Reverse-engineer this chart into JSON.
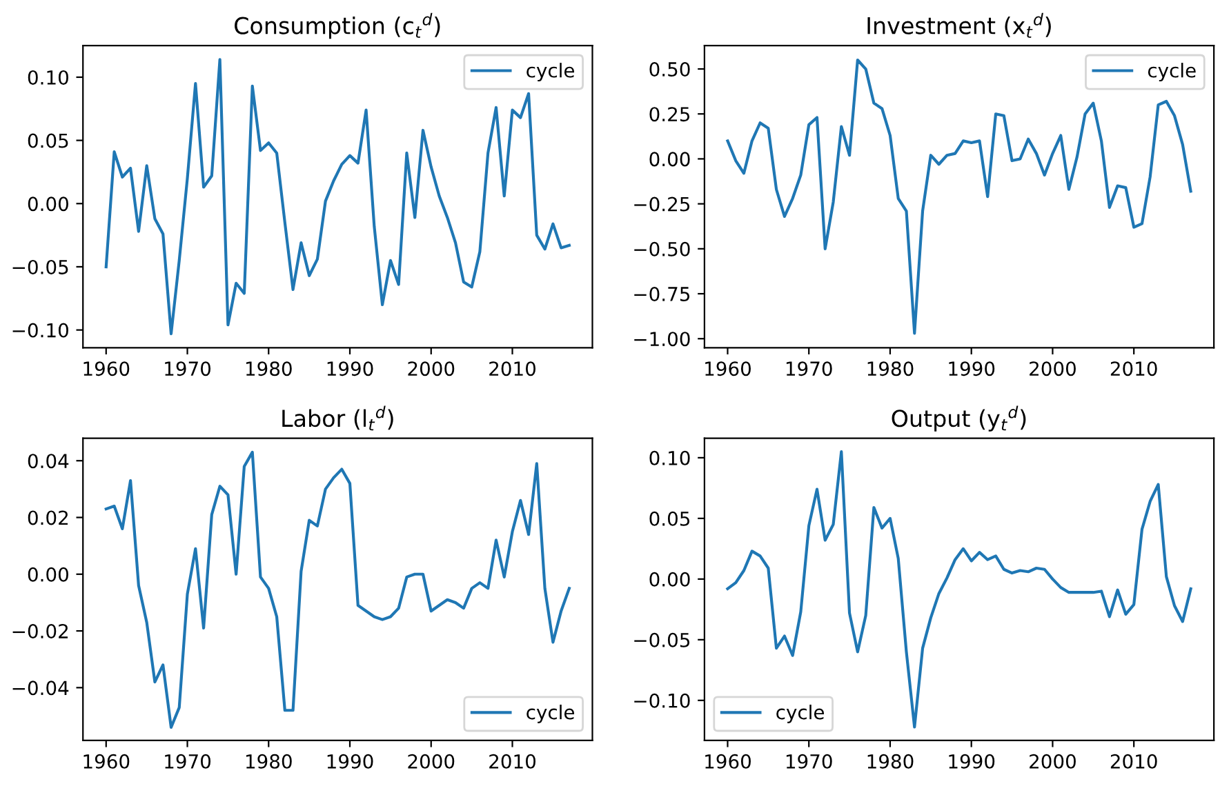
{
  "chart_data": [
    {
      "type": "line",
      "title": "Consumption (c$_{t}$$^{d}$)",
      "x": [
        1960,
        1961,
        1962,
        1963,
        1964,
        1965,
        1966,
        1967,
        1968,
        1969,
        1970,
        1971,
        1972,
        1973,
        1974,
        1975,
        1976,
        1977,
        1978,
        1979,
        1980,
        1981,
        1982,
        1983,
        1984,
        1985,
        1986,
        1987,
        1988,
        1989,
        1990,
        1991,
        1992,
        1993,
        1994,
        1995,
        1996,
        1997,
        1998,
        1999,
        2000,
        2001,
        2002,
        2003,
        2004,
        2005,
        2006,
        2007,
        2008,
        2009,
        2010,
        2011,
        2012,
        2013,
        2014,
        2015,
        2016,
        2017
      ],
      "series": [
        {
          "name": "cycle",
          "color": "#1f77b4",
          "values": [
            -0.05,
            0.041,
            0.021,
            0.028,
            -0.022,
            0.03,
            -0.012,
            -0.024,
            -0.103,
            -0.045,
            0.02,
            0.095,
            0.013,
            0.022,
            0.114,
            -0.096,
            -0.063,
            -0.071,
            0.093,
            0.042,
            0.048,
            0.04,
            -0.015,
            -0.068,
            -0.031,
            -0.057,
            -0.044,
            0.002,
            0.018,
            0.031,
            0.038,
            0.032,
            0.074,
            -0.018,
            -0.08,
            -0.045,
            -0.064,
            0.04,
            -0.011,
            0.058,
            0.029,
            0.006,
            -0.011,
            -0.031,
            -0.062,
            -0.066,
            -0.038,
            0.04,
            0.076,
            0.006,
            0.074,
            0.068,
            0.087,
            -0.025,
            -0.036,
            -0.016,
            -0.035,
            -0.033
          ]
        }
      ],
      "xlim": [
        1957.15,
        2019.85
      ],
      "xticks": [
        1960,
        1970,
        1980,
        1990,
        2000,
        2010
      ],
      "ylim": [
        -0.114,
        0.125
      ],
      "yticks": [
        {
          "value": -0.1,
          "label": "−0.10"
        },
        {
          "value": -0.05,
          "label": "−0.05"
        },
        {
          "value": 0,
          "label": "0.00"
        },
        {
          "value": 0.05,
          "label": "0.05"
        },
        {
          "value": 0.1,
          "label": "0.10"
        }
      ],
      "legend": "top right",
      "grid": false
    },
    {
      "type": "line",
      "title": "Investment (x$_{t}$$^{d}$)",
      "x": [
        1960,
        1961,
        1962,
        1963,
        1964,
        1965,
        1966,
        1967,
        1968,
        1969,
        1970,
        1971,
        1972,
        1973,
        1974,
        1975,
        1976,
        1977,
        1978,
        1979,
        1980,
        1981,
        1982,
        1983,
        1984,
        1985,
        1986,
        1987,
        1988,
        1989,
        1990,
        1991,
        1992,
        1993,
        1994,
        1995,
        1996,
        1997,
        1998,
        1999,
        2000,
        2001,
        2002,
        2003,
        2004,
        2005,
        2006,
        2007,
        2008,
        2009,
        2010,
        2011,
        2012,
        2013,
        2014,
        2015,
        2016,
        2017
      ],
      "series": [
        {
          "name": "cycle",
          "color": "#1f77b4",
          "values": [
            0.1,
            -0.01,
            -0.08,
            0.1,
            0.2,
            0.17,
            -0.17,
            -0.32,
            -0.22,
            -0.09,
            0.19,
            0.23,
            -0.5,
            -0.24,
            0.18,
            0.02,
            0.55,
            0.5,
            0.31,
            0.28,
            0.13,
            -0.22,
            -0.29,
            -0.97,
            -0.29,
            0.02,
            -0.03,
            0.02,
            0.03,
            0.1,
            0.09,
            0.1,
            -0.21,
            0.25,
            0.24,
            -0.01,
            0.0,
            0.11,
            0.03,
            -0.09,
            0.03,
            0.13,
            -0.17,
            0.01,
            0.25,
            0.31,
            0.1,
            -0.27,
            -0.15,
            -0.16,
            -0.38,
            -0.36,
            -0.1,
            0.3,
            0.32,
            0.24,
            0.08,
            -0.18
          ]
        }
      ],
      "xlim": [
        1957.15,
        2019.85
      ],
      "xticks": [
        1960,
        1970,
        1980,
        1990,
        2000,
        2010
      ],
      "ylim": [
        -1.05,
        0.63
      ],
      "yticks": [
        {
          "value": -1,
          "label": "−1.00"
        },
        {
          "value": -0.75,
          "label": "−0.75"
        },
        {
          "value": -0.5,
          "label": "−0.50"
        },
        {
          "value": -0.25,
          "label": "−0.25"
        },
        {
          "value": 0,
          "label": "0.00"
        },
        {
          "value": 0.25,
          "label": "0.25"
        },
        {
          "value": 0.5,
          "label": "0.50"
        }
      ],
      "legend": "top right",
      "grid": false
    },
    {
      "type": "line",
      "title": "Labor (l$_{t}$$^{d}$)",
      "x": [
        1960,
        1961,
        1962,
        1963,
        1964,
        1965,
        1966,
        1967,
        1968,
        1969,
        1970,
        1971,
        1972,
        1973,
        1974,
        1975,
        1976,
        1977,
        1978,
        1979,
        1980,
        1981,
        1982,
        1983,
        1984,
        1985,
        1986,
        1987,
        1988,
        1989,
        1990,
        1991,
        1992,
        1993,
        1994,
        1995,
        1996,
        1997,
        1998,
        1999,
        2000,
        2001,
        2002,
        2003,
        2004,
        2005,
        2006,
        2007,
        2008,
        2009,
        2010,
        2011,
        2012,
        2013,
        2014,
        2015,
        2016,
        2017
      ],
      "series": [
        {
          "name": "cycle",
          "color": "#1f77b4",
          "values": [
            0.023,
            0.024,
            0.016,
            0.033,
            -0.004,
            -0.017,
            -0.038,
            -0.032,
            -0.054,
            -0.047,
            -0.007,
            0.009,
            -0.019,
            0.021,
            0.031,
            0.028,
            0.0,
            0.038,
            0.043,
            -0.001,
            -0.005,
            -0.015,
            -0.048,
            -0.048,
            0.001,
            0.019,
            0.017,
            0.03,
            0.034,
            0.037,
            0.032,
            -0.011,
            -0.013,
            -0.015,
            -0.016,
            -0.015,
            -0.012,
            -0.001,
            0.0,
            0.0,
            -0.013,
            -0.011,
            -0.009,
            -0.01,
            -0.012,
            -0.005,
            -0.003,
            -0.005,
            0.012,
            -0.001,
            0.015,
            0.026,
            0.014,
            0.039,
            -0.005,
            -0.024,
            -0.013,
            -0.005
          ]
        }
      ],
      "xlim": [
        1957.15,
        2019.85
      ],
      "xticks": [
        1960,
        1970,
        1980,
        1990,
        2000,
        2010
      ],
      "ylim": [
        -0.0586,
        0.0479
      ],
      "yticks": [
        {
          "value": -0.04,
          "label": "−0.04"
        },
        {
          "value": -0.02,
          "label": "−0.02"
        },
        {
          "value": 0,
          "label": "0.00"
        },
        {
          "value": 0.02,
          "label": "0.02"
        },
        {
          "value": 0.04,
          "label": "0.04"
        }
      ],
      "legend": "bottom right",
      "grid": false
    },
    {
      "type": "line",
      "title": "Output (y$_{t}$$^{d}$)",
      "x": [
        1960,
        1961,
        1962,
        1963,
        1964,
        1965,
        1966,
        1967,
        1968,
        1969,
        1970,
        1971,
        1972,
        1973,
        1974,
        1975,
        1976,
        1977,
        1978,
        1979,
        1980,
        1981,
        1982,
        1983,
        1984,
        1985,
        1986,
        1987,
        1988,
        1989,
        1990,
        1991,
        1992,
        1993,
        1994,
        1995,
        1996,
        1997,
        1998,
        1999,
        2000,
        2001,
        2002,
        2003,
        2004,
        2005,
        2006,
        2007,
        2008,
        2009,
        2010,
        2011,
        2012,
        2013,
        2014,
        2015,
        2016,
        2017
      ],
      "series": [
        {
          "name": "cycle",
          "color": "#1f77b4",
          "values": [
            -0.008,
            -0.003,
            0.007,
            0.023,
            0.019,
            0.009,
            -0.057,
            -0.047,
            -0.063,
            -0.027,
            0.044,
            0.074,
            0.032,
            0.045,
            0.105,
            -0.028,
            -0.06,
            -0.03,
            0.059,
            0.042,
            0.05,
            0.017,
            -0.06,
            -0.122,
            -0.057,
            -0.032,
            -0.012,
            0.001,
            0.016,
            0.025,
            0.015,
            0.022,
            0.016,
            0.019,
            0.008,
            0.005,
            0.007,
            0.006,
            0.009,
            0.008,
            0.0,
            -0.007,
            -0.011,
            -0.011,
            -0.011,
            -0.011,
            -0.01,
            -0.031,
            -0.009,
            -0.029,
            -0.021,
            0.041,
            0.064,
            0.078,
            0.002,
            -0.022,
            -0.035,
            -0.008
          ]
        }
      ],
      "xlim": [
        1957.15,
        2019.85
      ],
      "xticks": [
        1960,
        1970,
        1980,
        1990,
        2000,
        2010
      ],
      "ylim": [
        -0.133,
        0.116
      ],
      "yticks": [
        {
          "value": -0.1,
          "label": "−0.10"
        },
        {
          "value": -0.05,
          "label": "−0.05"
        },
        {
          "value": 0,
          "label": "0.00"
        },
        {
          "value": 0.05,
          "label": "0.05"
        },
        {
          "value": 0.1,
          "label": "0.10"
        }
      ],
      "legend": "bottom left",
      "grid": false
    }
  ]
}
